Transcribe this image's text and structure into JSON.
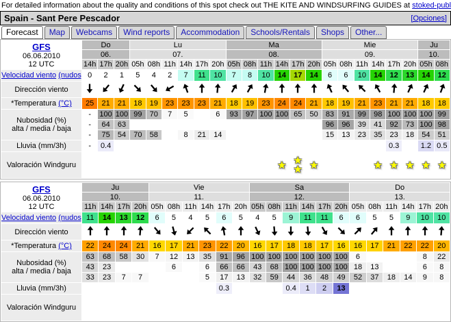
{
  "banner": {
    "text_before": "For detailed information about the quality and conditions of this spot check out THE KITE AND WINDSURFING GUIDES at ",
    "link_text": "stoked-publication"
  },
  "header": {
    "title": "Spain - Sant Pere Pescador",
    "options_link": "[Opciones]"
  },
  "tabs": {
    "active_index": 0,
    "labels": [
      "Forecast",
      "Map",
      "Webcams",
      "Wind reports",
      "Accommodation",
      "Schools/Rentals",
      "Shops",
      "Other..."
    ]
  },
  "row_labels": {
    "model": "GFS",
    "model_date": "06.06.2010",
    "model_run": "12 UTC",
    "wind_speed": "Velocidad viento",
    "wind_speed_unit": "(nudos)",
    "wind_dir": "Dirección viento",
    "temp": "*Temperatura",
    "temp_unit": "(°C)",
    "cloud_line1": "Nubosidad (%)",
    "cloud_line2": "alta / media / baja",
    "rain": "Lluvia (mm/3h)",
    "rating": "Valoración Windguru"
  },
  "colors": {
    "link_blue": "#0000cc",
    "star_yellow": "#ffff00",
    "wind_scale": {
      "6": "#e1fdfb",
      "7": "#c5fcf2",
      "8": "#c5fcf2",
      "9": "#9cf4d5",
      "10": "#4fe3a3",
      "11": "#3fe18c",
      "12": "#2edc4e",
      "13": "#2bd72b",
      "14": "#26d303",
      "17": "#a4d802"
    },
    "temp_scale": {
      "16": "#ffd800",
      "17": "#ffd200",
      "18": "#ffc900",
      "19": "#ffc000",
      "20": "#ffb600",
      "21": "#ffab00",
      "22": "#ffa000",
      "23": "#ff9400",
      "24": "#ff8800",
      "25": "#ff7c00"
    }
  },
  "tables": [
    {
      "day_groups": [
        {
          "day": "Do",
          "date": "06.",
          "shade": "dark",
          "hours": [
            "14h",
            "17h",
            "20h"
          ]
        },
        {
          "day": "Lu",
          "date": "07.",
          "shade": "light",
          "hours": [
            "05h",
            "08h",
            "11h",
            "14h",
            "17h",
            "20h"
          ]
        },
        {
          "day": "Ma",
          "date": "08.",
          "shade": "dark",
          "hours": [
            "05h",
            "08h",
            "11h",
            "14h",
            "17h",
            "20h"
          ]
        },
        {
          "day": "Mie",
          "date": "09.",
          "shade": "light",
          "hours": [
            "05h",
            "08h",
            "11h",
            "14h",
            "17h",
            "20h"
          ]
        },
        {
          "day": "Ju",
          "date": "10.",
          "shade": "dark",
          "hours": [
            "05h",
            "08h"
          ]
        }
      ],
      "wind": [
        0,
        2,
        1,
        5,
        4,
        2,
        7,
        11,
        10,
        7,
        8,
        10,
        14,
        17,
        14,
        6,
        6,
        10,
        14,
        12,
        13,
        14,
        12
      ],
      "dir_angles": [
        180,
        220,
        205,
        135,
        140,
        240,
        340,
        0,
        5,
        30,
        30,
        10,
        0,
        0,
        0,
        335,
        320,
        315,
        330,
        5,
        25,
        25,
        20
      ],
      "temp": [
        25,
        21,
        21,
        18,
        19,
        23,
        23,
        23,
        21,
        18,
        19,
        23,
        24,
        24,
        21,
        18,
        19,
        21,
        23,
        21,
        21,
        18,
        18
      ],
      "cloud_high": [
        "-",
        100,
        100,
        99,
        70,
        7,
        5,
        "",
        6,
        93,
        97,
        100,
        100,
        65,
        50,
        83,
        91,
        99,
        98,
        100,
        100,
        100,
        99
      ],
      "cloud_mid": [
        "-",
        64,
        63,
        "",
        "",
        "",
        "",
        "",
        "",
        "",
        "",
        "",
        "",
        "",
        "",
        96,
        96,
        39,
        41,
        92,
        73,
        100,
        98
      ],
      "cloud_low": [
        "-",
        75,
        54,
        70,
        58,
        "",
        8,
        21,
        14,
        "",
        "",
        "",
        "",
        "",
        "",
        15,
        13,
        23,
        35,
        23,
        18,
        54,
        51
      ],
      "rain": [
        "-",
        "0.4",
        "",
        "",
        "",
        "",
        "",
        "",
        "",
        "",
        "",
        "",
        "",
        "",
        "",
        "",
        "",
        "",
        "",
        "0.3",
        "",
        "1.2",
        "0.5"
      ],
      "stars": [
        0,
        0,
        0,
        0,
        0,
        0,
        0,
        0,
        0,
        0,
        0,
        0,
        1,
        2,
        1,
        0,
        0,
        0,
        1,
        1,
        1,
        1,
        1
      ]
    },
    {
      "day_groups": [
        {
          "day": "Ju",
          "date": "10.",
          "shade": "dark",
          "hours": [
            "11h",
            "14h",
            "17h",
            "20h"
          ]
        },
        {
          "day": "Vie",
          "date": "11.",
          "shade": "light",
          "hours": [
            "05h",
            "08h",
            "11h",
            "14h",
            "17h",
            "20h"
          ]
        },
        {
          "day": "Sa",
          "date": "12.",
          "shade": "dark",
          "hours": [
            "05h",
            "08h",
            "11h",
            "14h",
            "17h",
            "20h"
          ]
        },
        {
          "day": "Do",
          "date": "13.",
          "shade": "light",
          "hours": [
            "05h",
            "08h",
            "11h",
            "14h",
            "17h",
            "20h"
          ]
        }
      ],
      "wind": [
        11,
        14,
        13,
        12,
        6,
        5,
        4,
        5,
        6,
        5,
        4,
        5,
        9,
        11,
        11,
        6,
        6,
        5,
        5,
        9,
        10,
        10
      ],
      "dir_angles": [
        0,
        0,
        0,
        5,
        140,
        165,
        225,
        315,
        350,
        0,
        155,
        175,
        180,
        175,
        150,
        135,
        45,
        40,
        0,
        0,
        0,
        5
      ],
      "temp": [
        22,
        24,
        24,
        21,
        16,
        17,
        21,
        23,
        22,
        20,
        16,
        17,
        18,
        18,
        17,
        16,
        16,
        17,
        21,
        22,
        22,
        20
      ],
      "cloud_high": [
        63,
        68,
        58,
        30,
        7,
        12,
        13,
        35,
        91,
        96,
        100,
        100,
        100,
        100,
        100,
        100,
        6,
        "",
        "",
        "",
        8,
        22
      ],
      "cloud_mid": [
        43,
        23,
        "",
        "",
        "",
        6,
        "",
        6,
        66,
        66,
        43,
        68,
        100,
        100,
        100,
        100,
        18,
        13,
        "",
        "",
        6,
        8
      ],
      "cloud_low": [
        33,
        23,
        7,
        7,
        "",
        "",
        "",
        5,
        17,
        13,
        32,
        59,
        44,
        36,
        48,
        49,
        52,
        37,
        18,
        14,
        9,
        8
      ],
      "rain": [
        "",
        "",
        "",
        "",
        "",
        "",
        "",
        "",
        "0.3",
        "",
        "",
        "",
        "0.4",
        "1",
        "2",
        "13",
        "",
        "",
        "",
        "",
        "",
        ""
      ],
      "stars": [
        0,
        0,
        0,
        0,
        0,
        0,
        0,
        0,
        0,
        0,
        0,
        0,
        0,
        0,
        0,
        0,
        0,
        0,
        0,
        0,
        0,
        0
      ]
    }
  ]
}
